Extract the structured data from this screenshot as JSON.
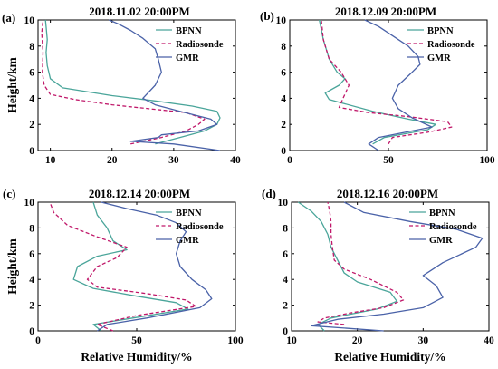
{
  "colors": {
    "BPNN": "#4aa59a",
    "Radiosonde": "#c0186a",
    "GMR": "#4a62a8"
  },
  "chart_data": [
    {
      "type": "line",
      "panel": "(a)",
      "title": "2018.11.02 20:00PM",
      "xlabel": "",
      "ylabel": "Height/km",
      "xlim": [
        8,
        40
      ],
      "ylim": [
        0,
        10
      ],
      "xticks": [
        10,
        20,
        30,
        40
      ],
      "yticks": [
        0,
        2,
        4,
        6,
        8,
        10
      ],
      "legend": "top-right",
      "series": [
        {
          "name": "BPNN",
          "style": "solid",
          "x": [
            27,
            31,
            35,
            37,
            37.5,
            37,
            33,
            27,
            20,
            12,
            10,
            9.5,
            9.3,
            9.5,
            9.3,
            9.2
          ],
          "y": [
            0.5,
            1,
            1.5,
            2,
            2.5,
            3,
            3.4,
            3.8,
            4.2,
            4.8,
            5.5,
            6.5,
            7.5,
            8.5,
            9.5,
            10
          ]
        },
        {
          "name": "Radiosonde",
          "style": "dashed",
          "x": [
            23,
            28,
            32,
            34,
            35,
            32,
            26,
            20,
            14,
            10,
            9,
            8.7,
            8.8,
            8.6,
            8.8
          ],
          "y": [
            0.5,
            1,
            1.5,
            2,
            2.4,
            2.9,
            3.2,
            3.5,
            3.9,
            4.3,
            5,
            6,
            7.5,
            9,
            10
          ]
        },
        {
          "name": "GMR",
          "style": "solid",
          "x": [
            37.5,
            30,
            23,
            27.5,
            28,
            34,
            37,
            36,
            31,
            27,
            25,
            27,
            28,
            27.5,
            27,
            25,
            23,
            21,
            19.5
          ],
          "y": [
            0,
            0.5,
            0.7,
            1,
            1.2,
            1.5,
            2,
            2.4,
            3,
            3.5,
            4,
            5,
            6,
            7,
            7.8,
            8.6,
            9.2,
            9.7,
            10
          ]
        }
      ]
    },
    {
      "type": "line",
      "panel": "(b)",
      "title": "2018.12.09 20:00PM",
      "xlabel": "",
      "ylabel": "",
      "xlim": [
        0,
        100
      ],
      "ylim": [
        0,
        10
      ],
      "xticks": [
        0,
        50,
        100
      ],
      "yticks": [
        0,
        2,
        4,
        6,
        8,
        10
      ],
      "legend": "top-right",
      "series": [
        {
          "name": "BPNN",
          "style": "solid",
          "x": [
            42,
            48,
            70,
            74,
            60,
            42,
            20,
            18,
            25,
            28,
            24,
            20,
            17,
            15
          ],
          "y": [
            0.5,
            1,
            1.6,
            2,
            2.4,
            3,
            3.9,
            4.4,
            5,
            5.5,
            6,
            7,
            8.5,
            10
          ]
        },
        {
          "name": "Radiosonde",
          "style": "dashed",
          "x": [
            50,
            52,
            70,
            82,
            80,
            60,
            40,
            25,
            27,
            30,
            26,
            20,
            17,
            16
          ],
          "y": [
            0.5,
            1,
            1.4,
            1.8,
            2.2,
            2.6,
            2.9,
            3.3,
            4,
            5,
            6,
            7,
            8.5,
            10
          ]
        },
        {
          "name": "GMR",
          "style": "solid",
          "x": [
            45,
            40,
            45,
            72,
            62,
            55,
            52,
            55,
            62,
            66,
            65,
            60,
            52,
            45,
            38
          ],
          "y": [
            0,
            0.5,
            1,
            1.8,
            2.5,
            3.2,
            4,
            5,
            6,
            6.6,
            7.2,
            8,
            8.8,
            9.5,
            10
          ]
        }
      ]
    },
    {
      "type": "line",
      "panel": "(c)",
      "title": "2018.12.14 20:00PM",
      "xlabel": "Relative Humidity/%",
      "ylabel": "Height/km",
      "xlim": [
        0,
        100
      ],
      "ylim": [
        0,
        10
      ],
      "xticks": [
        0,
        50,
        100
      ],
      "yticks": [
        0,
        2,
        4,
        6,
        8,
        10
      ],
      "legend": "top-right",
      "series": [
        {
          "name": "BPNN",
          "style": "solid",
          "x": [
            32,
            28,
            48,
            76,
            70,
            50,
            28,
            18,
            20,
            30,
            45,
            38,
            35,
            30,
            28
          ],
          "y": [
            0,
            0.5,
            1,
            1.7,
            2.2,
            2.7,
            3.3,
            4,
            5,
            5.8,
            6.3,
            7,
            8,
            9,
            10
          ]
        },
        {
          "name": "Radiosonde",
          "style": "dashed",
          "x": [
            38,
            30,
            50,
            80,
            75,
            55,
            30,
            25,
            30,
            40,
            45,
            30,
            15,
            8,
            6
          ],
          "y": [
            0,
            0.5,
            1.2,
            1.9,
            2.4,
            2.9,
            3.4,
            4,
            5,
            5.7,
            6.5,
            7.3,
            8.2,
            9.2,
            10
          ]
        },
        {
          "name": "GMR",
          "style": "solid",
          "x": [
            30,
            35,
            55,
            82,
            88,
            85,
            78,
            72,
            70,
            72,
            75,
            70,
            60,
            45,
            32
          ],
          "y": [
            0,
            0.5,
            1,
            1.8,
            2.5,
            3.2,
            4,
            5,
            6,
            7,
            7.7,
            8.4,
            9,
            9.5,
            10
          ]
        }
      ]
    },
    {
      "type": "line",
      "panel": "(d)",
      "title": "2018.12.16 20:00PM",
      "xlabel": "Relative Humidity/%",
      "ylabel": "",
      "xlim": [
        10,
        40
      ],
      "ylim": [
        0,
        10
      ],
      "xticks": [
        10,
        20,
        30,
        40
      ],
      "yticks": [
        0,
        2,
        4,
        6,
        8,
        10
      ],
      "legend": "top-right",
      "series": [
        {
          "name": "BPNN",
          "style": "solid",
          "x": [
            15,
            14,
            16,
            19,
            23,
            26,
            25,
            20,
            18,
            17,
            16,
            15.5,
            14.5,
            13,
            11
          ],
          "y": [
            0,
            0.5,
            1,
            1.3,
            1.7,
            2.3,
            3,
            3.8,
            4.5,
            5.5,
            6.5,
            7.5,
            8.5,
            9.3,
            10
          ]
        },
        {
          "name": "Radiosonde",
          "style": "dashed",
          "x": [
            18,
            14,
            15,
            19,
            24,
            27,
            26,
            22,
            18,
            16.5,
            16.2,
            16,
            16,
            15.8,
            15.5
          ],
          "y": [
            0.5,
            0.7,
            1,
            1.4,
            1.8,
            2.4,
            3,
            4,
            4.8,
            5.5,
            6.5,
            7.5,
            8.5,
            9.3,
            10
          ]
        },
        {
          "name": "GMR",
          "style": "solid",
          "x": [
            24,
            13,
            17,
            24,
            30,
            33,
            32,
            30,
            33,
            38,
            39,
            35,
            28,
            21,
            18
          ],
          "y": [
            0,
            0.4,
            0.9,
            1.3,
            1.8,
            2.6,
            3.5,
            4.3,
            5.3,
            6.5,
            7.2,
            7.9,
            8.5,
            9.2,
            10
          ]
        }
      ]
    }
  ]
}
